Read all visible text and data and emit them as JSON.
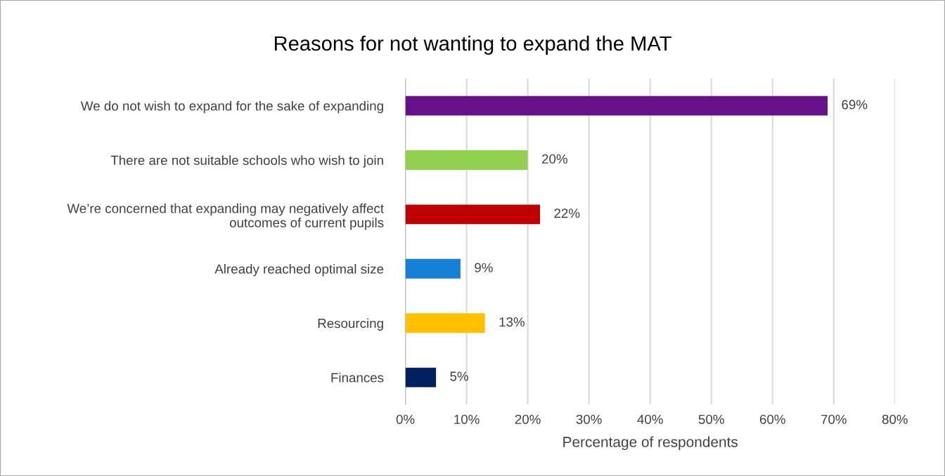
{
  "chart_data": {
    "type": "bar",
    "orientation": "horizontal",
    "title": "Reasons for not wanting to expand the MAT",
    "xlabel": "Percentage of respondents",
    "categories": [
      "We do not wish to expand for the sake of expanding",
      "There are not suitable schools who wish to join",
      "We’re concerned that expanding may negatively affect\noutcomes of current pupils",
      "Already reached optimal size",
      "Resourcing",
      "Finances"
    ],
    "values": [
      69,
      20,
      22,
      9,
      13,
      5
    ],
    "colors": [
      "#66118a",
      "#92d050",
      "#c00000",
      "#1581d6",
      "#ffc000",
      "#002060"
    ],
    "value_labels": [
      "69%",
      "20%",
      "22%",
      "9%",
      "13%",
      "5%"
    ],
    "xlim": [
      0,
      80
    ],
    "xticks": [
      {
        "value": 0,
        "label": "0%"
      },
      {
        "value": 10,
        "label": "10%"
      },
      {
        "value": 20,
        "label": "20%"
      },
      {
        "value": 30,
        "label": "30%"
      },
      {
        "value": 40,
        "label": "40%"
      },
      {
        "value": 50,
        "label": "50%"
      },
      {
        "value": 60,
        "label": "60%"
      },
      {
        "value": 70,
        "label": "70%"
      },
      {
        "value": 80,
        "label": "80%"
      }
    ],
    "grid": "x",
    "legend": false
  }
}
